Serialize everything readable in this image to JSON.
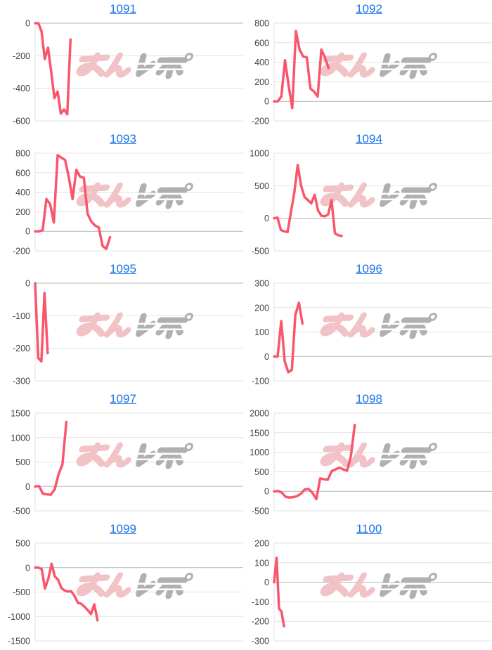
{
  "page": {
    "background": "#ffffff"
  },
  "watermark": {
    "text": "みんレポ",
    "pink_part": "みん",
    "gray_part": "レポ",
    "pink_color": "#f1c2c6",
    "gray_color": "#b0b0b0"
  },
  "chart_style": {
    "line_color": "#f9566e",
    "grid_color": "#e3e3e3",
    "baseline_color": "#b4b4b4",
    "label_color": "#444444",
    "title_link_color": "#1a73e8"
  },
  "chart_data": [
    {
      "type": "line",
      "title": "1091",
      "y_ticks": [
        0,
        -200,
        -400,
        -600
      ],
      "ylim": [
        -600,
        0
      ],
      "x_fill_fraction": 0.17,
      "values": [
        0,
        0,
        -50,
        -220,
        -150,
        -300,
        -460,
        -420,
        -555,
        -530,
        -560,
        -100
      ]
    },
    {
      "type": "line",
      "title": "1092",
      "y_ticks": [
        800,
        600,
        400,
        200,
        0,
        -200
      ],
      "ylim": [
        -200,
        800
      ],
      "x_fill_fraction": 0.25,
      "values": [
        0,
        0,
        50,
        420,
        160,
        -70,
        720,
        530,
        460,
        450,
        130,
        100,
        50,
        530,
        450,
        340
      ]
    },
    {
      "type": "line",
      "title": "1093",
      "y_ticks": [
        800,
        600,
        400,
        200,
        0,
        -200
      ],
      "ylim": [
        -200,
        800
      ],
      "x_fill_fraction": 0.36,
      "values": [
        0,
        0,
        10,
        330,
        280,
        90,
        780,
        755,
        730,
        550,
        330,
        630,
        560,
        550,
        180,
        100,
        60,
        40,
        -150,
        -180,
        -60
      ]
    },
    {
      "type": "line",
      "title": "1094",
      "y_ticks": [
        1000,
        500,
        0,
        -500
      ],
      "ylim": [
        -500,
        1000
      ],
      "x_fill_fraction": 0.31,
      "values": [
        0,
        10,
        -180,
        -200,
        -210,
        100,
        400,
        820,
        500,
        330,
        280,
        230,
        360,
        120,
        40,
        30,
        60,
        280,
        -230,
        -260,
        -270
      ]
    },
    {
      "type": "line",
      "title": "1095",
      "y_ticks": [
        0,
        -100,
        -200,
        -300
      ],
      "ylim": [
        -300,
        0
      ],
      "x_fill_fraction": 0.06,
      "values": [
        0,
        -230,
        -240,
        -30,
        -215
      ]
    },
    {
      "type": "line",
      "title": "1096",
      "y_ticks": [
        300,
        200,
        100,
        0,
        -100
      ],
      "ylim": [
        -100,
        300
      ],
      "x_fill_fraction": 0.13,
      "values": [
        0,
        0,
        145,
        -20,
        -65,
        -55,
        170,
        220,
        135
      ]
    },
    {
      "type": "line",
      "title": "1097",
      "y_ticks": [
        1500,
        1000,
        500,
        0,
        -500
      ],
      "ylim": [
        -500,
        1500
      ],
      "x_fill_fraction": 0.15,
      "values": [
        0,
        10,
        -150,
        -160,
        -170,
        -60,
        250,
        450,
        1320
      ]
    },
    {
      "type": "line",
      "title": "1098",
      "y_ticks": [
        2000,
        1500,
        1000,
        500,
        0,
        -500
      ],
      "ylim": [
        -500,
        2000
      ],
      "x_fill_fraction": 0.37,
      "values": [
        0,
        10,
        -30,
        -140,
        -160,
        -150,
        -120,
        -60,
        50,
        60,
        -40,
        -200,
        330,
        310,
        300,
        520,
        560,
        610,
        560,
        530,
        900,
        1700
      ]
    },
    {
      "type": "line",
      "title": "1099",
      "y_ticks": [
        500,
        0,
        -500,
        -1000,
        -1500
      ],
      "ylim": [
        -1500,
        500
      ],
      "x_fill_fraction": 0.3,
      "values": [
        0,
        0,
        -30,
        -430,
        -230,
        80,
        -180,
        -250,
        -420,
        -470,
        -490,
        -485,
        -580,
        -720,
        -740,
        -800,
        -870,
        -950,
        -750,
        -1080
      ]
    },
    {
      "type": "line",
      "title": "1100",
      "y_ticks": [
        200,
        100,
        0,
        -100,
        -200,
        -300
      ],
      "ylim": [
        -300,
        200
      ],
      "x_fill_fraction": 0.045,
      "values": [
        0,
        125,
        -135,
        -150,
        -225
      ]
    }
  ]
}
